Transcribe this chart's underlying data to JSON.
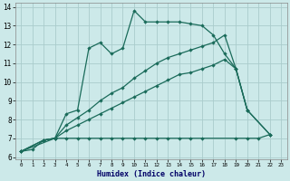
{
  "xlabel": "Humidex (Indice chaleur)",
  "bg_color": "#cce9e9",
  "grid_color": "#aacccc",
  "line_color": "#1a6b5a",
  "xlim": [
    -0.5,
    23.5
  ],
  "ylim": [
    5.9,
    14.2
  ],
  "xticks": [
    0,
    1,
    2,
    3,
    4,
    5,
    6,
    7,
    8,
    9,
    10,
    11,
    12,
    13,
    14,
    15,
    16,
    17,
    18,
    19,
    20,
    21,
    22,
    23
  ],
  "yticks": [
    6,
    7,
    8,
    9,
    10,
    11,
    12,
    13,
    14
  ],
  "s1x": [
    0,
    1,
    2,
    3,
    4,
    5,
    6,
    7,
    8,
    9,
    10,
    11,
    12,
    13,
    14,
    15,
    16,
    17,
    18,
    19,
    20
  ],
  "s1y": [
    6.3,
    6.4,
    6.9,
    7.0,
    8.3,
    8.5,
    11.8,
    12.1,
    11.5,
    11.8,
    13.8,
    13.2,
    13.2,
    13.2,
    13.2,
    13.1,
    13.0,
    12.5,
    11.5,
    10.7,
    8.5
  ],
  "s2x": [
    0,
    3,
    4,
    5,
    6,
    7,
    8,
    9,
    10,
    11,
    12,
    13,
    14,
    15,
    16,
    19,
    20,
    21,
    22
  ],
  "s2y": [
    6.3,
    7.0,
    7.0,
    7.0,
    7.0,
    7.0,
    7.0,
    7.0,
    7.0,
    7.0,
    7.0,
    7.0,
    7.0,
    7.0,
    7.0,
    7.0,
    7.0,
    7.0,
    7.2
  ],
  "s3x": [
    0,
    2,
    3,
    4,
    5,
    6,
    7,
    8,
    9,
    10,
    11,
    12,
    13,
    14,
    15,
    16,
    17,
    18,
    19,
    20,
    22
  ],
  "s3y": [
    6.3,
    6.9,
    7.0,
    7.7,
    8.1,
    8.5,
    9.0,
    9.4,
    9.7,
    10.2,
    10.6,
    11.0,
    11.3,
    11.5,
    11.7,
    11.9,
    12.1,
    12.5,
    10.7,
    8.5,
    7.2
  ],
  "s4x": [
    0,
    2,
    3,
    4,
    5,
    6,
    7,
    8,
    9,
    10,
    11,
    12,
    13,
    14,
    15,
    16,
    17,
    18,
    19,
    20,
    22
  ],
  "s4y": [
    6.3,
    6.9,
    7.0,
    7.4,
    7.7,
    8.0,
    8.3,
    8.6,
    8.9,
    9.2,
    9.5,
    9.8,
    10.1,
    10.4,
    10.5,
    10.7,
    10.9,
    11.2,
    10.7,
    8.5,
    7.2
  ]
}
